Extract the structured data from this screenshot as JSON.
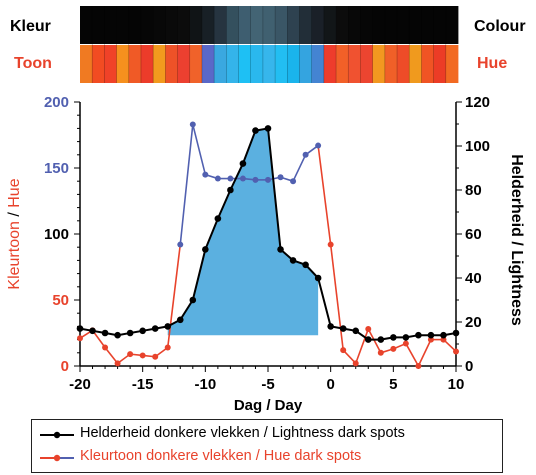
{
  "labels": {
    "kleur": "Kleur",
    "colour": "Colour",
    "toon": "Toon",
    "hue": "Hue"
  },
  "strip_colours": {
    "kleur_row": [
      "#050505",
      "#050505",
      "#050505",
      "#050505",
      "#050505",
      "#060606",
      "#080808",
      "#0a0a0a",
      "#0c0c0c",
      "#101416",
      "#182026",
      "#263440",
      "#34505e",
      "#3e5e70",
      "#436474",
      "#406070",
      "#3a5666",
      "#2e4250",
      "#222e38",
      "#1a2028",
      "#121618",
      "#0c0c0c",
      "#080808",
      "#060606",
      "#050505",
      "#050505",
      "#050505",
      "#050505",
      "#050505",
      "#050505",
      "#050505"
    ],
    "toon_row": [
      "#f07a22",
      "#f24c22",
      "#f04228",
      "#f6901e",
      "#f05a26",
      "#ec3c2a",
      "#f29a1e",
      "#ee5228",
      "#ec4030",
      "#f0622a",
      "#5a68c8",
      "#3aa8e0",
      "#34b4ea",
      "#1ec0f4",
      "#2ab8ee",
      "#36b6ec",
      "#22bef2",
      "#1ab4ec",
      "#34a4e0",
      "#4484d2",
      "#ee3c2c",
      "#f26028",
      "#f05230",
      "#ec4530",
      "#f29820",
      "#f06028",
      "#ee4c28",
      "#f09a1e",
      "#f05424",
      "#ec3c26",
      "#f26a22"
    ]
  },
  "chart_data": {
    "type": "line",
    "xlabel": "Dag  /  Day",
    "ylabel_left": [
      "Kleurtoon",
      "/",
      "Hue"
    ],
    "ylabel_right": "Helderheid  /  Lightness",
    "x_range": [
      -20,
      10
    ],
    "y_left_range": [
      0,
      200
    ],
    "y_right_range": [
      0,
      120
    ],
    "x_ticks": [
      -20,
      -15,
      -10,
      -5,
      0,
      5,
      10
    ],
    "y_left_ticks": [
      0,
      50,
      100,
      150,
      200
    ],
    "y_right_ticks": [
      0,
      20,
      40,
      60,
      80,
      100,
      120
    ],
    "series": [
      {
        "name": "Helderheid donkere vlekken  /  Lightness dark spots",
        "axis": "right",
        "color": "#000000",
        "x": [
          -20,
          -19,
          -18,
          -17,
          -16,
          -15,
          -14,
          -13,
          -12,
          -11,
          -10,
          -9,
          -8,
          -7,
          -6,
          -5,
          -4,
          -3,
          -2,
          -1,
          0,
          1,
          2,
          3,
          4,
          5,
          6,
          7,
          8,
          9,
          10
        ],
        "y": [
          17,
          16,
          15,
          14,
          15,
          16,
          17,
          18,
          21,
          30,
          53,
          67,
          80,
          92,
          107,
          108,
          53,
          48,
          46,
          40,
          18,
          17,
          16,
          12,
          12,
          13,
          13,
          14,
          14,
          14,
          15
        ]
      },
      {
        "name": "Kleurtoon donkere vlekken  /  Hue dark spots",
        "axis": "left",
        "color": "#e8432c",
        "color_secondary": "#5160b0",
        "x": [
          -20,
          -19,
          -18,
          -17,
          -16,
          -15,
          -14,
          -13,
          -12,
          -11,
          -10,
          -9,
          -8,
          -7,
          -6,
          -5,
          -4,
          -3,
          -2,
          -1,
          0,
          1,
          2,
          3,
          4,
          5,
          6,
          7,
          8,
          9,
          10
        ],
        "y": [
          21,
          27,
          14,
          2,
          9,
          8,
          7,
          14,
          92,
          183,
          145,
          142,
          142,
          142,
          141,
          141,
          143,
          140,
          160,
          167,
          92,
          12,
          2,
          28,
          10,
          13,
          17,
          0,
          20,
          20,
          11
        ],
        "segments_blue_x_range": [
          -12,
          -1
        ]
      }
    ],
    "legend_placement": "bottom",
    "grid": false
  }
}
